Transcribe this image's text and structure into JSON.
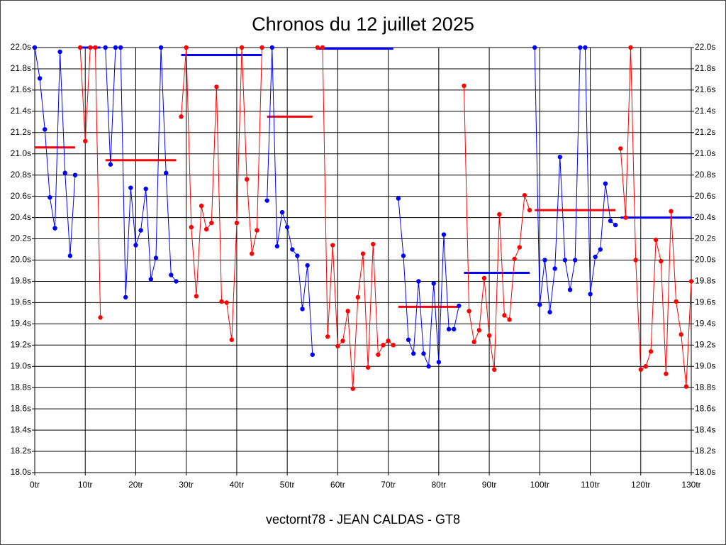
{
  "chart_data": {
    "type": "line",
    "title": "Chronos du 12 juillet 2025",
    "xlabel": "vectornt78 - JEAN CALDAS - GT8",
    "xlim": [
      0,
      130
    ],
    "ylim": [
      18.0,
      22.0
    ],
    "grid": true,
    "xticks": [
      {
        "value": 0,
        "label": "0tr"
      },
      {
        "value": 10,
        "label": "10tr"
      },
      {
        "value": 20,
        "label": "20tr"
      },
      {
        "value": 30,
        "label": "30tr"
      },
      {
        "value": 40,
        "label": "40tr"
      },
      {
        "value": 50,
        "label": "50tr"
      },
      {
        "value": 60,
        "label": "60tr"
      },
      {
        "value": 70,
        "label": "70tr"
      },
      {
        "value": 80,
        "label": "80tr"
      },
      {
        "value": 90,
        "label": "90tr"
      },
      {
        "value": 100,
        "label": "100tr"
      },
      {
        "value": 110,
        "label": "110tr"
      },
      {
        "value": 120,
        "label": "120tr"
      },
      {
        "value": 130,
        "label": "130tr"
      }
    ],
    "yticks": [
      {
        "value": 18.0,
        "label": "18.0s"
      },
      {
        "value": 18.2,
        "label": "18.2s"
      },
      {
        "value": 18.4,
        "label": "18.4s"
      },
      {
        "value": 18.6,
        "label": "18.6s"
      },
      {
        "value": 18.8,
        "label": "18.8s"
      },
      {
        "value": 19.0,
        "label": "19.0s"
      },
      {
        "value": 19.2,
        "label": "19.2s"
      },
      {
        "value": 19.4,
        "label": "19.4s"
      },
      {
        "value": 19.6,
        "label": "19.6s"
      },
      {
        "value": 19.8,
        "label": "19.8s"
      },
      {
        "value": 20.0,
        "label": "20.0s"
      },
      {
        "value": 20.2,
        "label": "20.2s"
      },
      {
        "value": 20.4,
        "label": "20.4s"
      },
      {
        "value": 20.6,
        "label": "20.6s"
      },
      {
        "value": 20.8,
        "label": "20.8s"
      },
      {
        "value": 21.0,
        "label": "21.0s"
      },
      {
        "value": 21.2,
        "label": "21.2s"
      },
      {
        "value": 21.4,
        "label": "21.4s"
      },
      {
        "value": 21.6,
        "label": "21.6s"
      },
      {
        "value": 21.8,
        "label": "21.8s"
      },
      {
        "value": 22.0,
        "label": "22.0s"
      }
    ],
    "series": [
      {
        "color": "#0000ff",
        "average": 21.06,
        "average_color": "#ff0000",
        "x": [
          0,
          1,
          2,
          3,
          4,
          5,
          6,
          7,
          8
        ],
        "values": [
          22.0,
          21.71,
          21.23,
          20.59,
          20.3,
          21.96,
          20.82,
          20.04,
          20.8
        ]
      },
      {
        "color": "#ff0000",
        "average": 22.0,
        "average_color": "#0000ff",
        "x": [
          9,
          10,
          11,
          12,
          13
        ],
        "values": [
          22.0,
          21.12,
          22.0,
          22.0,
          19.46
        ]
      },
      {
        "color": "#0000ff",
        "average": 20.94,
        "average_color": "#ff0000",
        "x": [
          14,
          15,
          16,
          17,
          18,
          19,
          20,
          21,
          22,
          23,
          24,
          25,
          26,
          27,
          28
        ],
        "values": [
          22.0,
          20.9,
          22.0,
          22.0,
          19.65,
          20.68,
          20.14,
          20.28,
          20.67,
          19.82,
          20.02,
          22.0,
          20.82,
          19.86,
          19.8
        ]
      },
      {
        "color": "#ff0000",
        "average": 21.93,
        "average_color": "#0000ff",
        "x": [
          29,
          30,
          31,
          32,
          33,
          34,
          35,
          36,
          37,
          38,
          39,
          40,
          41,
          42,
          43,
          44,
          45
        ],
        "values": [
          21.35,
          22.0,
          20.31,
          19.66,
          20.51,
          20.29,
          20.35,
          21.63,
          19.61,
          19.6,
          19.25,
          20.35,
          22.0,
          20.76,
          20.06,
          20.28,
          22.0
        ]
      },
      {
        "color": "#0000ff",
        "average": 21.35,
        "average_color": "#ff0000",
        "x": [
          46,
          47,
          48,
          49,
          50,
          51,
          52,
          53,
          54,
          55
        ],
        "values": [
          20.56,
          22.0,
          20.13,
          20.45,
          20.31,
          20.1,
          20.04,
          19.54,
          19.95,
          19.11
        ]
      },
      {
        "color": "#ff0000",
        "average": 21.99,
        "average_color": "#0000ff",
        "x": [
          56,
          57,
          58,
          59,
          60,
          61,
          62,
          63,
          64,
          65,
          66,
          67,
          68,
          69,
          70,
          71
        ],
        "values": [
          22.0,
          22.0,
          19.28,
          20.14,
          19.19,
          19.24,
          19.52,
          18.79,
          19.65,
          20.06,
          18.99,
          20.15,
          19.11,
          19.2,
          19.24,
          19.2
        ]
      },
      {
        "color": "#0000ff",
        "average": 19.56,
        "average_color": "#ff0000",
        "x": [
          72,
          73,
          74,
          75,
          76,
          77,
          78,
          79,
          80,
          81,
          82,
          83,
          84
        ],
        "values": [
          20.58,
          20.04,
          19.25,
          19.12,
          19.8,
          19.12,
          19.0,
          19.78,
          19.04,
          20.24,
          19.35,
          19.35,
          19.57
        ]
      },
      {
        "color": "#ff0000",
        "average": 19.88,
        "average_color": "#0000ff",
        "x": [
          85,
          86,
          87,
          88,
          89,
          90,
          91,
          92,
          93,
          94,
          95,
          96,
          97,
          98
        ],
        "values": [
          21.64,
          19.52,
          19.23,
          19.34,
          19.83,
          19.29,
          18.97,
          20.43,
          19.48,
          19.44,
          20.01,
          20.12,
          20.61,
          20.47
        ]
      },
      {
        "color": "#0000ff",
        "average": 20.47,
        "average_color": "#ff0000",
        "x": [
          99,
          100,
          101,
          102,
          103,
          104,
          105,
          106,
          107,
          108,
          109,
          110,
          111,
          112,
          113,
          114,
          115
        ],
        "values": [
          22.0,
          19.58,
          20.0,
          19.51,
          19.92,
          20.97,
          20.0,
          19.72,
          20.0,
          22.0,
          22.0,
          19.68,
          20.03,
          20.1,
          20.72,
          20.37,
          20.33
        ]
      },
      {
        "color": "#ff0000",
        "average": 20.4,
        "average_color": "#0000ff",
        "x": [
          116,
          117,
          118,
          119,
          120,
          121,
          122,
          123,
          124,
          125,
          126,
          127,
          128,
          129,
          130
        ],
        "values": [
          21.05,
          20.4,
          22.0,
          20.0,
          18.97,
          19.0,
          19.14,
          20.19,
          19.99,
          18.93,
          20.46,
          19.61,
          19.3,
          18.81,
          19.8
        ]
      }
    ]
  }
}
